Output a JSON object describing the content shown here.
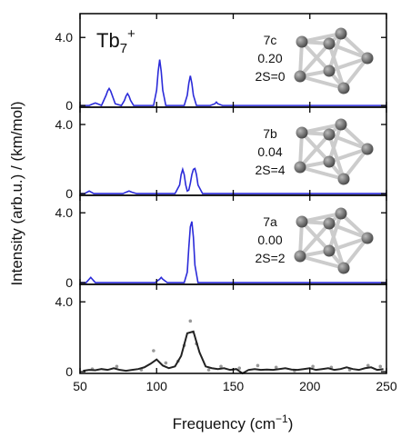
{
  "chart_data": [
    {
      "type": "line",
      "title": {
        "text": "Tb",
        "sub": "7",
        "sup": "+"
      },
      "ylabel": "Intensity (arb.u.) / (km/mol)",
      "annotations": [
        "7c",
        "0.20",
        "2S=0"
      ],
      "ylim": [
        -0.1,
        5.4
      ],
      "yticks": [
        {
          "value": 4,
          "label": "4.0"
        },
        0
      ],
      "series": [
        {
          "color": "#2b2bd9",
          "x": [
            50,
            56,
            58,
            60,
            62,
            64,
            65,
            67,
            68,
            69,
            70,
            71,
            73,
            77,
            79,
            80,
            81,
            82,
            83,
            85,
            98,
            100,
            101,
            102,
            103,
            104,
            106,
            118,
            120,
            121,
            122,
            123,
            124,
            126,
            135,
            138,
            139,
            140,
            143,
            250
          ],
          "values": [
            0,
            0,
            0.08,
            0.15,
            0.08,
            0,
            0.2,
            0.6,
            0.85,
            1.0,
            0.85,
            0.6,
            0.1,
            0,
            0.3,
            0.55,
            0.7,
            0.55,
            0.3,
            0,
            0,
            0.9,
            2.0,
            2.7,
            2.0,
            0.9,
            0,
            0,
            0.6,
            1.3,
            1.75,
            1.3,
            0.6,
            0,
            0,
            0.1,
            0.2,
            0.1,
            0,
            0
          ]
        }
      ]
    },
    {
      "type": "line",
      "annotations": [
        "7b",
        "0.04",
        "2S=4"
      ],
      "ylim": [
        -0.1,
        5.0
      ],
      "yticks": [
        {
          "value": 4,
          "label": "4.0"
        },
        0
      ],
      "series": [
        {
          "color": "#2b2bd9",
          "x": [
            50,
            53,
            55,
            56,
            57,
            59,
            62,
            78,
            80,
            82,
            84,
            87,
            112,
            115,
            116,
            117,
            118,
            119,
            120,
            121,
            122,
            123,
            124,
            125,
            126,
            127,
            130,
            250
          ],
          "values": [
            0,
            0,
            0.1,
            0.15,
            0.1,
            0,
            0,
            0,
            0.08,
            0.15,
            0.08,
            0,
            0,
            0.5,
            1.1,
            1.4,
            1.1,
            0.5,
            0.15,
            0.2,
            0.6,
            1.1,
            1.4,
            1.45,
            1.1,
            0.5,
            0,
            0
          ]
        }
      ]
    },
    {
      "type": "line",
      "annotations": [
        "7a",
        "0.00",
        "2S=2"
      ],
      "ylim": [
        -0.1,
        5.0
      ],
      "yticks": [
        {
          "value": 4,
          "label": "4.0"
        },
        0
      ],
      "series": [
        {
          "color": "#2b2bd9",
          "x": [
            50,
            54,
            56,
            57,
            58,
            60,
            64,
            99,
            102,
            103,
            104,
            107,
            118,
            120,
            121,
            122,
            123,
            124,
            125,
            127,
            250
          ],
          "values": [
            0,
            0,
            0.2,
            0.3,
            0.2,
            0,
            0,
            0,
            0.2,
            0.3,
            0.2,
            0,
            0,
            0.6,
            2.0,
            3.2,
            3.5,
            2.6,
            1.0,
            0,
            0
          ]
        }
      ]
    },
    {
      "type": "line",
      "xlabel": {
        "text": "Frequency (cm",
        "sup": "−1",
        "tail": ")"
      },
      "xlim": [
        50,
        250
      ],
      "xticks": [
        50,
        100,
        150,
        200,
        250
      ],
      "ylim": [
        -0.1,
        5.0
      ],
      "yticks": [
        {
          "value": 4,
          "label": "4.0"
        },
        0
      ],
      "series": [
        {
          "color": "#999999",
          "style": "dots",
          "x": [
            58,
            74,
            90,
            98,
            106,
            114,
            118,
            122,
            126,
            134,
            142,
            154,
            166,
            178,
            190,
            202,
            214,
            226,
            238,
            246
          ],
          "values": [
            0.15,
            0.3,
            0.1,
            1.2,
            0.5,
            0.6,
            1.5,
            2.9,
            1.6,
            0.1,
            0.3,
            0.2,
            0.35,
            0.25,
            0.05,
            0.3,
            0.25,
            0.1,
            0.35,
            0.3
          ]
        },
        {
          "color": "#222222",
          "x": [
            52,
            56,
            60,
            64,
            68,
            72,
            76,
            80,
            84,
            88,
            92,
            96,
            100,
            104,
            108,
            112,
            116,
            120,
            124,
            128,
            132,
            136,
            140,
            144,
            148,
            152,
            156,
            160,
            164,
            168,
            172,
            176,
            180,
            184,
            188,
            192,
            196,
            200,
            204,
            208,
            212,
            216,
            220,
            224,
            228,
            232,
            236,
            240,
            244,
            248
          ],
          "values": [
            0.05,
            0.1,
            0.08,
            0.15,
            0.1,
            0.2,
            0.1,
            0.05,
            0.1,
            0.15,
            0.25,
            0.45,
            0.7,
            0.35,
            0.2,
            0.3,
            0.9,
            2.2,
            2.3,
            1.1,
            0.3,
            0.2,
            0.15,
            0.2,
            0.1,
            0.15,
            -0.1,
            0.1,
            0.15,
            0.1,
            0.12,
            0.1,
            0.15,
            0.2,
            0.12,
            0.1,
            0.15,
            0.2,
            0.1,
            0.15,
            0.2,
            0.1,
            0.15,
            0.25,
            0.15,
            0.1,
            0.2,
            0.25,
            0.1,
            0.15
          ]
        }
      ]
    }
  ]
}
